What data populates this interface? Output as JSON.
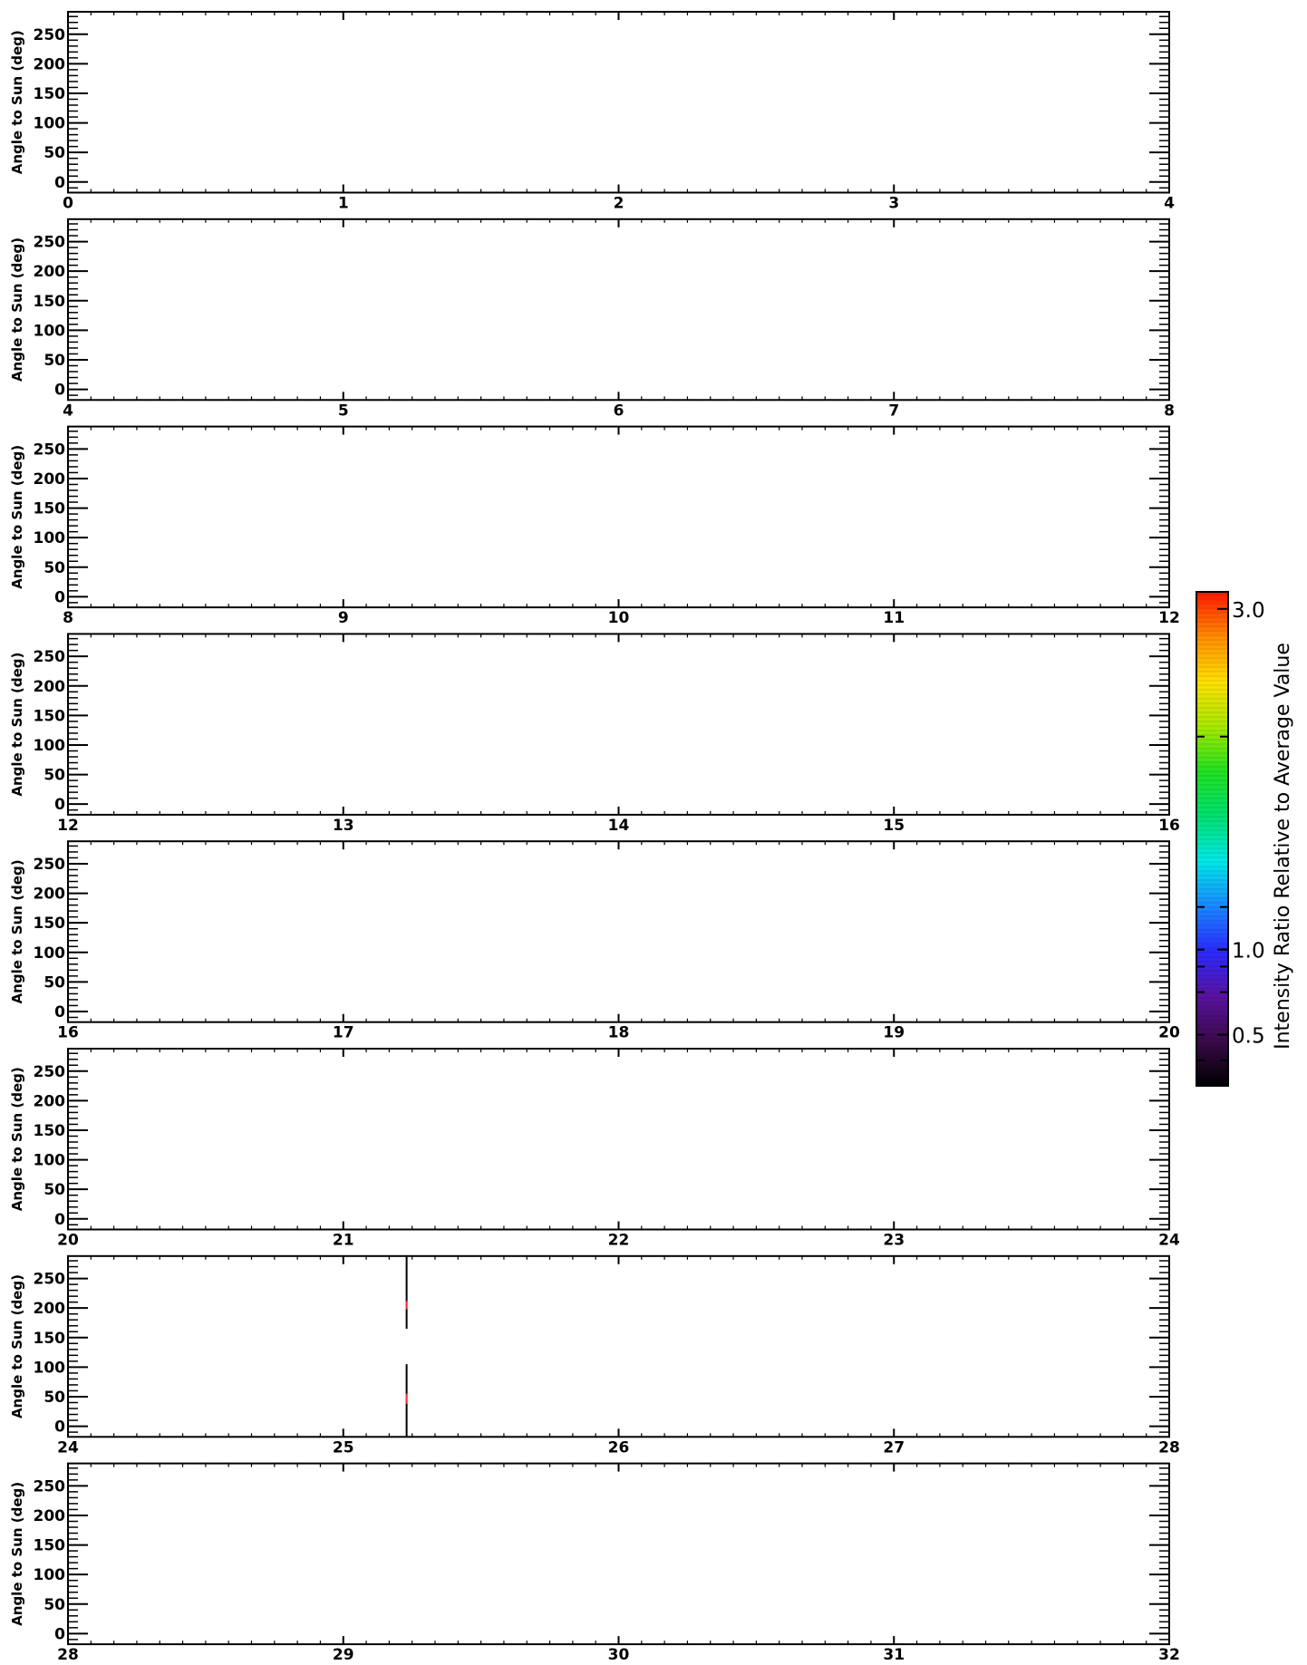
{
  "chart_data": {
    "type": "heatmap",
    "ylabel": "Angle to Sun (deg)",
    "yticks": [
      0,
      50,
      100,
      150,
      200,
      250
    ],
    "ylim": [
      -18,
      288
    ],
    "panels": [
      {
        "xlim": [
          0,
          4
        ],
        "xticks": [
          0,
          1,
          2,
          3,
          4
        ],
        "marks": []
      },
      {
        "xlim": [
          4,
          8
        ],
        "xticks": [
          4,
          5,
          6,
          7,
          8
        ],
        "marks": []
      },
      {
        "xlim": [
          8,
          12
        ],
        "xticks": [
          8,
          9,
          10,
          11,
          12
        ],
        "marks": []
      },
      {
        "xlim": [
          12,
          16
        ],
        "xticks": [
          12,
          13,
          14,
          15,
          16
        ],
        "marks": []
      },
      {
        "xlim": [
          16,
          20
        ],
        "xticks": [
          16,
          17,
          18,
          19,
          20
        ],
        "marks": []
      },
      {
        "xlim": [
          20,
          24
        ],
        "xticks": [
          20,
          21,
          22,
          23,
          24
        ],
        "marks": []
      },
      {
        "xlim": [
          24,
          28
        ],
        "xticks": [
          24,
          25,
          26,
          27,
          28
        ],
        "marks": [
          {
            "x": 25.23,
            "y0": 165,
            "y1": 288,
            "color": "#000000"
          },
          {
            "x": 25.23,
            "y0": 198,
            "y1": 212,
            "color": "#ff3333"
          },
          {
            "x": 25.23,
            "y0": -18,
            "y1": 105,
            "color": "#000000"
          },
          {
            "x": 25.23,
            "y0": 38,
            "y1": 55,
            "color": "#ff3333"
          }
        ]
      },
      {
        "xlim": [
          28,
          32
        ],
        "xticks": [
          28,
          29,
          30,
          31,
          32
        ],
        "marks": []
      }
    ],
    "colorbar": {
      "label": "Intensity Ratio Relative to Average Value",
      "range": [
        0.2,
        3.1
      ],
      "ticks": [
        {
          "value": 0.5,
          "label": "0.5"
        },
        {
          "value": 1.0,
          "label": "1.0"
        },
        {
          "value": 3.0,
          "label": "3.0"
        }
      ],
      "minor_marks": [
        0.35,
        0.5,
        0.75,
        0.9,
        1.0,
        1.25,
        2.25
      ],
      "colors": [
        "#000000",
        "#3a0a4a",
        "#5a12a0",
        "#2a2aff",
        "#1a88ff",
        "#00e8e8",
        "#00e070",
        "#20e020",
        "#a8e800",
        "#ffe000",
        "#ff8c00",
        "#ff1800"
      ]
    }
  }
}
